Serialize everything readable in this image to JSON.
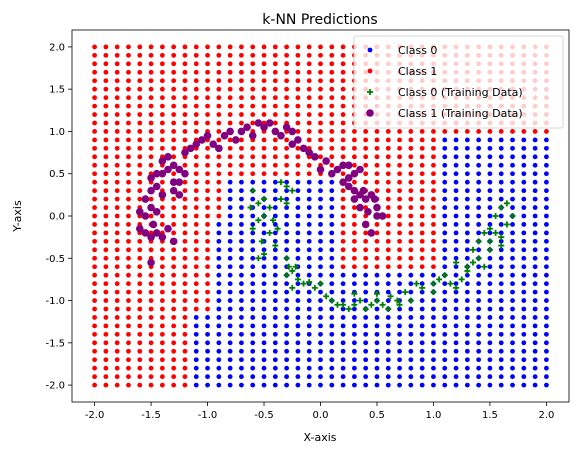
{
  "chart_data": {
    "type": "scatter",
    "title": "k-NN Predictions",
    "xlabel": "X-axis",
    "ylabel": "Y-axis",
    "xlim": [
      -2.2,
      2.2
    ],
    "ylim": [
      -2.2,
      2.2
    ],
    "xticks": [
      "-2.0",
      "-1.5",
      "-1.0",
      "-0.5",
      "0.0",
      "0.5",
      "1.0",
      "1.5",
      "2.0"
    ],
    "yticks": [
      "-2.0",
      "-1.5",
      "-1.0",
      "-0.5",
      "0.0",
      "0.5",
      "1.0",
      "1.5",
      "2.0"
    ],
    "grid": false,
    "legend_position": "top-right",
    "legend": [
      {
        "label": "Class 0",
        "marker": "dot",
        "color": "#0000ff"
      },
      {
        "label": "Class 1",
        "marker": "dot",
        "color": "#ff0000"
      },
      {
        "label": "Class 0 (Training Data)",
        "marker": "plus",
        "color": "#008000"
      },
      {
        "label": "Class 1 (Training Data)",
        "marker": "circle",
        "color": "#800080"
      }
    ],
    "prediction_grid": {
      "x_start": -2.0,
      "x_end": 2.0,
      "y_start": -2.0,
      "y_end": 2.0,
      "count": 41,
      "class0_color": "#0000ff",
      "class1_color": "#ff0000"
    },
    "series": [
      {
        "name": "Class 0 (Training Data)",
        "color": "#008000",
        "points": [
          [
            -0.6,
            0.3
          ],
          [
            -0.55,
            0.15
          ],
          [
            -0.5,
            0.2
          ],
          [
            -0.45,
            0.1
          ],
          [
            -0.62,
            0.1
          ],
          [
            -0.5,
            0.0
          ],
          [
            -0.55,
            -0.05
          ],
          [
            -0.42,
            -0.05
          ],
          [
            -0.6,
            -0.15
          ],
          [
            -0.45,
            -0.2
          ],
          [
            -0.52,
            -0.3
          ],
          [
            -0.5,
            -0.45
          ],
          [
            -0.55,
            -0.5
          ],
          [
            -0.4,
            -0.35
          ],
          [
            -0.35,
            0.2
          ],
          [
            -0.3,
            0.15
          ],
          [
            -0.35,
            0.4
          ],
          [
            -0.3,
            0.35
          ],
          [
            -0.25,
            0.3
          ],
          [
            -0.38,
            -0.15
          ],
          [
            -0.3,
            -0.5
          ],
          [
            -0.28,
            -0.6
          ],
          [
            -0.25,
            -0.65
          ],
          [
            -0.3,
            -0.7
          ],
          [
            -0.22,
            -0.6
          ],
          [
            -0.2,
            -0.75
          ],
          [
            -0.15,
            -0.8
          ],
          [
            -0.25,
            -0.85
          ],
          [
            -0.1,
            -0.78
          ],
          [
            -0.05,
            -0.85
          ],
          [
            0.0,
            -0.8
          ],
          [
            0.05,
            -0.95
          ],
          [
            0.1,
            -1.0
          ],
          [
            0.15,
            -1.05
          ],
          [
            0.2,
            -1.05
          ],
          [
            0.25,
            -1.1
          ],
          [
            0.3,
            -1.05
          ],
          [
            0.35,
            -1.0
          ],
          [
            0.3,
            -0.92
          ],
          [
            0.4,
            -1.1
          ],
          [
            0.45,
            -1.05
          ],
          [
            0.5,
            -1.0
          ],
          [
            0.5,
            -0.92
          ],
          [
            0.55,
            -1.05
          ],
          [
            0.6,
            -1.1
          ],
          [
            0.62,
            -0.95
          ],
          [
            0.68,
            -1.0
          ],
          [
            0.7,
            -1.05
          ],
          [
            0.75,
            -0.9
          ],
          [
            0.8,
            -1.0
          ],
          [
            0.85,
            -0.8
          ],
          [
            0.9,
            -0.85
          ],
          [
            1.0,
            -0.8
          ],
          [
            1.0,
            -0.9
          ],
          [
            1.05,
            -0.75
          ],
          [
            1.1,
            -0.7
          ],
          [
            1.15,
            -0.8
          ],
          [
            1.2,
            -0.55
          ],
          [
            1.2,
            -0.85
          ],
          [
            1.25,
            -0.75
          ],
          [
            1.3,
            -0.65
          ],
          [
            1.3,
            -0.6
          ],
          [
            1.35,
            -0.55
          ],
          [
            1.35,
            -0.4
          ],
          [
            1.4,
            -0.5
          ],
          [
            1.4,
            -0.3
          ],
          [
            1.45,
            -0.6
          ],
          [
            1.45,
            -0.2
          ],
          [
            1.5,
            -0.4
          ],
          [
            1.5,
            -0.15
          ],
          [
            1.55,
            0.0
          ],
          [
            1.55,
            -0.2
          ],
          [
            1.6,
            0.1
          ],
          [
            1.6,
            -0.25
          ],
          [
            1.65,
            -0.1
          ],
          [
            1.65,
            0.15
          ],
          [
            1.6,
            -0.35
          ],
          [
            1.7,
            0.0
          ],
          [
            1.5,
            -0.3
          ]
        ]
      },
      {
        "name": "Class 1 (Training Data)",
        "color": "#800080",
        "points": [
          [
            -1.6,
            -0.15
          ],
          [
            -1.55,
            -0.2
          ],
          [
            -1.5,
            -0.25
          ],
          [
            -1.45,
            -0.2
          ],
          [
            -1.4,
            -0.25
          ],
          [
            -1.48,
            -0.1
          ],
          [
            -1.55,
            0.0
          ],
          [
            -1.6,
            0.05
          ],
          [
            -1.5,
            0.1
          ],
          [
            -1.45,
            0.05
          ],
          [
            -1.55,
            0.2
          ],
          [
            -1.5,
            0.3
          ],
          [
            -1.45,
            0.35
          ],
          [
            -1.4,
            0.25
          ],
          [
            -1.5,
            0.45
          ],
          [
            -1.45,
            0.5
          ],
          [
            -1.4,
            0.5
          ],
          [
            -1.35,
            0.55
          ],
          [
            -1.3,
            0.6
          ],
          [
            -1.25,
            0.55
          ],
          [
            -1.2,
            0.5
          ],
          [
            -1.25,
            0.4
          ],
          [
            -1.3,
            0.3
          ],
          [
            -1.35,
            -0.15
          ],
          [
            -1.3,
            -0.3
          ],
          [
            -1.5,
            -0.55
          ],
          [
            -1.4,
            0.65
          ],
          [
            -1.35,
            0.7
          ],
          [
            -1.3,
            0.4
          ],
          [
            -1.25,
            0.25
          ],
          [
            -1.2,
            0.75
          ],
          [
            -1.15,
            0.8
          ],
          [
            -1.1,
            0.85
          ],
          [
            -1.05,
            0.9
          ],
          [
            -1.0,
            0.95
          ],
          [
            -0.95,
            0.85
          ],
          [
            -0.9,
            0.8
          ],
          [
            -0.85,
            0.95
          ],
          [
            -0.8,
            1.0
          ],
          [
            -0.75,
            0.9
          ],
          [
            -0.7,
            1.0
          ],
          [
            -0.65,
            1.05
          ],
          [
            -0.6,
            0.95
          ],
          [
            -0.55,
            1.1
          ],
          [
            -0.5,
            1.05
          ],
          [
            -0.45,
            1.1
          ],
          [
            -0.4,
            1.0
          ],
          [
            -0.35,
            0.95
          ],
          [
            -0.3,
            1.05
          ],
          [
            -0.25,
            1.0
          ],
          [
            -0.25,
            0.85
          ],
          [
            -0.2,
            0.9
          ],
          [
            -0.15,
            0.8
          ],
          [
            -0.1,
            0.75
          ],
          [
            -0.05,
            0.7
          ],
          [
            0.0,
            0.55
          ],
          [
            0.05,
            0.65
          ],
          [
            0.1,
            0.5
          ],
          [
            0.15,
            0.55
          ],
          [
            0.2,
            0.4
          ],
          [
            0.2,
            0.6
          ],
          [
            0.25,
            0.35
          ],
          [
            0.25,
            0.45
          ],
          [
            0.3,
            0.3
          ],
          [
            0.3,
            0.2
          ],
          [
            0.35,
            0.25
          ],
          [
            0.35,
            0.1
          ],
          [
            0.38,
            0.3
          ],
          [
            0.4,
            0.2
          ],
          [
            0.42,
            0.05
          ],
          [
            0.45,
            0.25
          ],
          [
            0.4,
            -0.1
          ],
          [
            0.45,
            -0.2
          ],
          [
            0.5,
            0.0
          ],
          [
            0.5,
            0.1
          ],
          [
            0.55,
            0.0
          ],
          [
            0.48,
            0.2
          ],
          [
            0.35,
            0.55
          ],
          [
            0.3,
            0.5
          ],
          [
            0.25,
            0.6
          ]
        ]
      }
    ]
  }
}
